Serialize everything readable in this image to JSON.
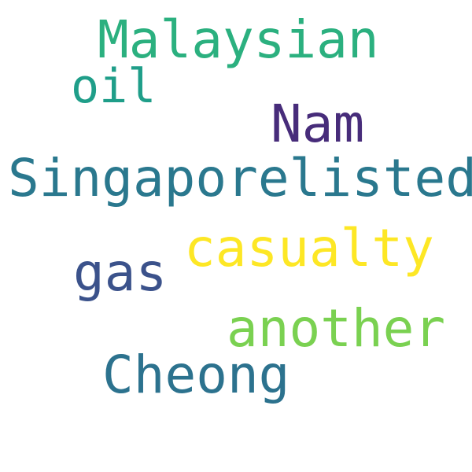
{
  "words": [
    {
      "text": "Malaysian",
      "color": "#2bb07f"
    },
    {
      "text": "oil",
      "color": "#1f9e89"
    },
    {
      "text": "Nam",
      "color": "#472c7a"
    },
    {
      "text": "Singaporelisted",
      "color": "#2a788e"
    },
    {
      "text": "casualty",
      "color": "#fde725"
    },
    {
      "text": "gas",
      "color": "#3b528b"
    },
    {
      "text": "another",
      "color": "#7ad151"
    },
    {
      "text": "Cheong",
      "color": "#2c728e"
    }
  ]
}
